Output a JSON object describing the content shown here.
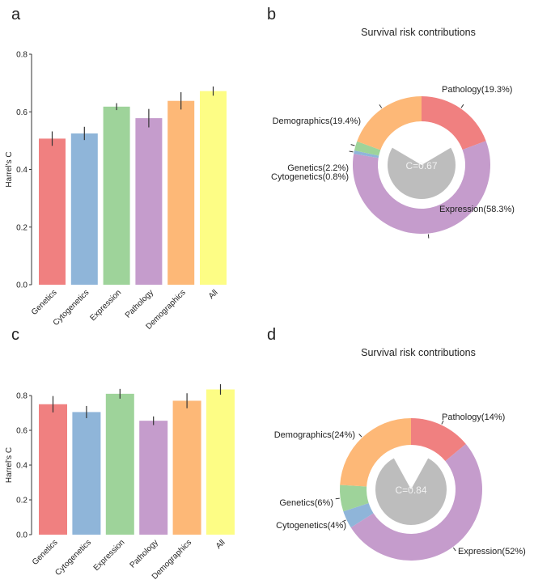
{
  "colors": {
    "Genetics": "#f08080",
    "Cytogenetics": "#8fb5d9",
    "Expression": "#9ed39a",
    "Pathology": "#c59ccc",
    "Demographics": "#fdb877",
    "All": "#fdfd85",
    "pie_Genetics": "#9ed39a",
    "pie_Cytogenetics": "#8fb5d9",
    "pie_Expression": "#c59ccc",
    "pie_Pathology": "#f08080",
    "pie_Demographics": "#fdb877",
    "center": "#bdbdbd"
  },
  "chart_data": [
    {
      "panel": "a",
      "type": "bar",
      "ylabel": "Harrel's C",
      "ylim": [
        0,
        0.8
      ],
      "yticks": [
        "0.0",
        "0.2",
        "0.4",
        "0.6",
        "0.8"
      ],
      "categories": [
        "Genetics",
        "Cytogenetics",
        "Expression",
        "Pathology",
        "Demographics",
        "All"
      ],
      "values": [
        0.507,
        0.525,
        0.618,
        0.578,
        0.638,
        0.672
      ],
      "errors": [
        0.025,
        0.023,
        0.012,
        0.032,
        0.03,
        0.016
      ]
    },
    {
      "panel": "b",
      "type": "pie",
      "title": "Survival risk contributions",
      "center_label": "C=0.67",
      "center_value": 0.67,
      "slices": [
        {
          "name": "Pathology",
          "label": "Pathology(19.3%)",
          "value": 19.3
        },
        {
          "name": "Expression",
          "label": "Expression(58.3%)",
          "value": 58.3
        },
        {
          "name": "Cytogenetics",
          "label": "Cytogenetics(0.8%)",
          "value": 0.8
        },
        {
          "name": "Genetics",
          "label": "Genetics(2.2%)",
          "value": 2.2
        },
        {
          "name": "Demographics",
          "label": "Demographics(19.4%)",
          "value": 19.4
        }
      ]
    },
    {
      "panel": "c",
      "type": "bar",
      "ylabel": "Harrel's C",
      "ylim": [
        0,
        0.8
      ],
      "yticks": [
        "0.0",
        "0.2",
        "0.4",
        "0.6",
        "0.8"
      ],
      "categories": [
        "Genetics",
        "Cytogenetics",
        "Expression",
        "Pathology",
        "Demographics",
        "All"
      ],
      "values": [
        0.75,
        0.705,
        0.81,
        0.655,
        0.77,
        0.835
      ],
      "errors": [
        0.047,
        0.035,
        0.028,
        0.025,
        0.043,
        0.03
      ]
    },
    {
      "panel": "d",
      "type": "pie",
      "title": "Survival risk contributions",
      "center_label": "C=0.84",
      "center_value": 0.84,
      "slices": [
        {
          "name": "Pathology",
          "label": "Pathology(14%)",
          "value": 14
        },
        {
          "name": "Expression",
          "label": "Expression(52%)",
          "value": 52
        },
        {
          "name": "Cytogenetics",
          "label": "Cytogenetics(4%)",
          "value": 4
        },
        {
          "name": "Genetics",
          "label": "Genetics(6%)",
          "value": 6
        },
        {
          "name": "Demographics",
          "label": "Demographics(24%)",
          "value": 24
        }
      ]
    }
  ]
}
